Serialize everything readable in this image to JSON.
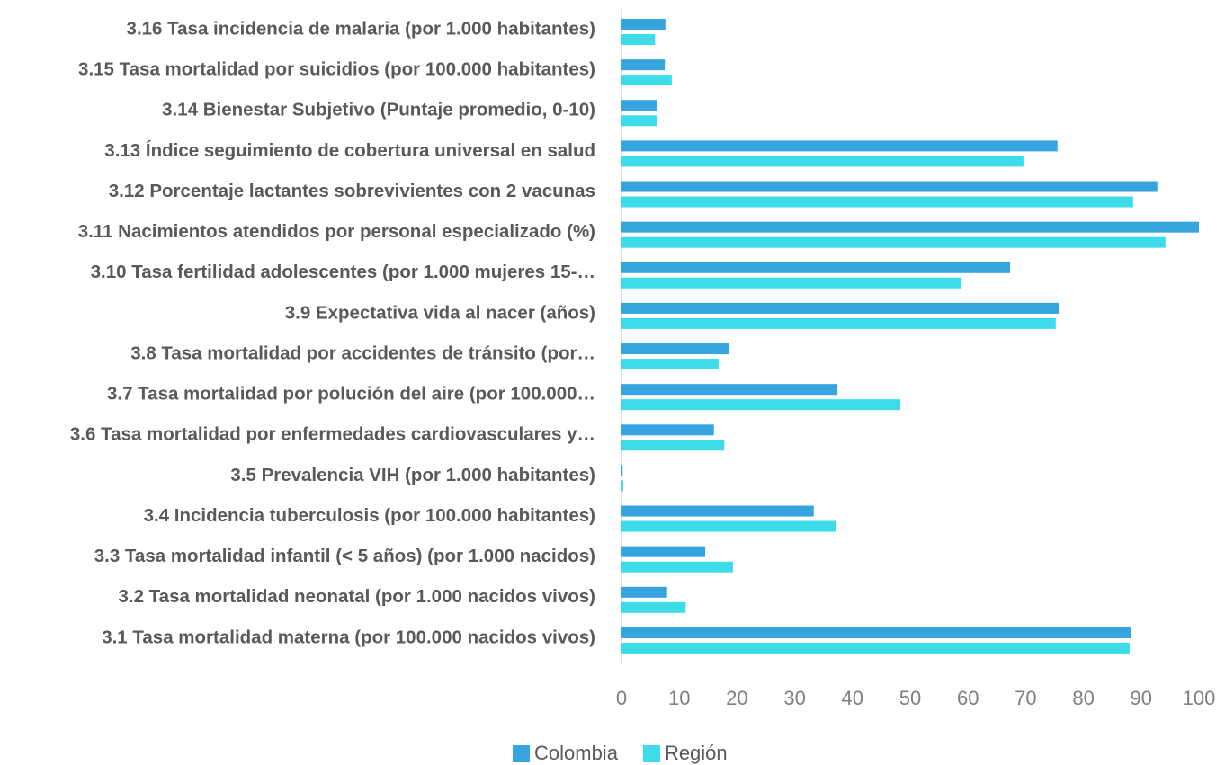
{
  "chart_data": {
    "type": "bar",
    "orientation": "horizontal",
    "categories": [
      "3.16 Tasa incidencia de malaria (por 1.000 habitantes)",
      "3.15 Tasa mortalidad por suicidios (por 100.000 habitantes)",
      "3.14 Bienestar Subjetivo (Puntaje promedio, 0-10)",
      "3.13 Índice seguimiento de cobertura universal en salud",
      "3.12 Porcentaje lactantes sobrevivientes con 2 vacunas",
      "3.11 Nacimientos atendidos por personal especializado (%)",
      "3.10 Tasa fertilidad adolescentes (por 1.000 mujeres 15-…",
      "3.9 Expectativa vida al nacer (años)",
      "3.8 Tasa mortalidad por accidentes de tránsito (por…",
      "3.7 Tasa mortalidad por polución del aire (por 100.000…",
      "3.6 Tasa mortalidad por enfermedades cardiovasculares y…",
      "3.5 Prevalencia VIH (por 1.000 habitantes)",
      "3.4 Incidencia tuberculosis (por 100.000 habitantes)",
      "3.3 Tasa mortalidad infantil (< 5 años) (por 1.000 nacidos)",
      "3.2 Tasa mortalidad neonatal (por 1.000 nacidos vivos)",
      "3.1 Tasa mortalidad materna (por 100.000 nacidos vivos)"
    ],
    "series": [
      {
        "name": "Colombia",
        "color": "#35a4df",
        "values": [
          7.6,
          7.5,
          6.2,
          75.5,
          92.8,
          100,
          67.3,
          75.7,
          18.7,
          37.4,
          16.0,
          0.2,
          33.3,
          14.5,
          7.9,
          88.2
        ]
      },
      {
        "name": "Región",
        "color": "#3ddce8",
        "values": [
          5.8,
          8.7,
          6.2,
          69.6,
          88.6,
          94.2,
          58.9,
          75.2,
          16.8,
          48.3,
          17.8,
          0.3,
          37.2,
          19.3,
          11.1,
          88.0
        ]
      }
    ],
    "xlim": [
      0,
      100
    ],
    "xticks": [
      0,
      10,
      20,
      30,
      40,
      50,
      60,
      70,
      80,
      90,
      100
    ],
    "grid": false,
    "legend": "bottom"
  }
}
